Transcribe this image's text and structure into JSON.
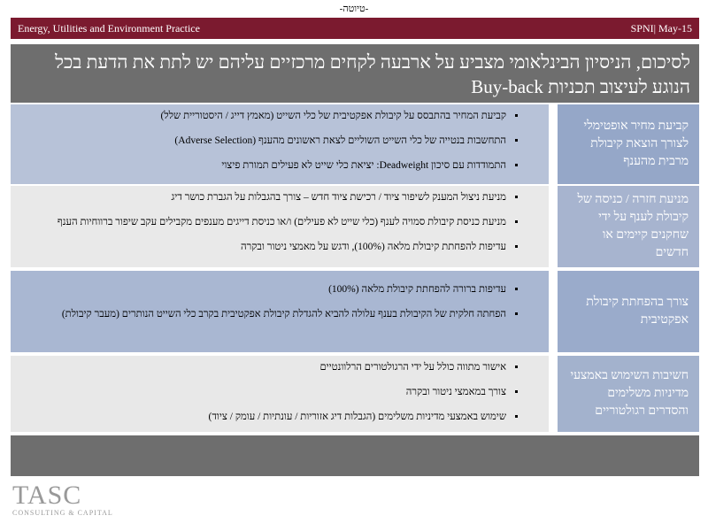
{
  "draft": "-טיוטה-",
  "header": {
    "practice": "Energy, Utilities and Environment Practice",
    "date": "SPNI| May-15"
  },
  "title": "לסיכום, הניסיון הבינלאומי מצביע על ארבעה לקחים מרכזיים עליהם יש לתת את הדעת בכל הנוגע לעיצוב תכניות Buy-back",
  "sections": [
    {
      "label": "קביעת מחיר אופטימלי לצורך הוצאת קיבולת מרבית מהענף",
      "bullets": [
        "קביעת המחיר בהתבסס על קיבולת אפקטיבית של כלי השייט (מאמץ דייג / היסטוריית שלל)",
        "התחשבות בנטייה של כלי השייט השוליים לצאת ראשונים מהענף (Adverse Selection)",
        "התמודדות עם סיכון Deadweight: יציאת כלי שייט לא פעילים תמורת פיצוי"
      ]
    },
    {
      "label": "מניעת חזרה / כניסה של קיבולת לענף על ידי שחקנים קיימים או חדשים",
      "bullets": [
        "מניעת ניצול המענק לשיפור ציוד / רכישת ציוד חדש – צורך בהגבלות על הגברת כושר דיג",
        "מניעת כניסת קיבולת סמויה לענף (כלי שייט לא פעילים) ו/או כניסת דייגים מענפים מקבילים עקב שיפור ברווחיות הענף",
        "עדיפות להפחתת קיבולת מלאה (100%), ודגש על מאמצי ניטור ובקרה"
      ]
    },
    {
      "label": "צורך בהפחתת קיבולת אפקטיבית",
      "bullets": [
        "עדיפות ברורה להפחתת קיבולת מלאה (100%)",
        "הפחתה חלקית של הקיבולת בענף עלולה להביא להגדלת קיבולת אפקטיבית בקרב כלי השייט הנותרים (מעבר קיבולת)"
      ]
    },
    {
      "label": "חשיבות השימוש באמצעי מדיניות משלימים והסדרים רגולטוריים",
      "bullets": [
        "אישור מתווה כולל על ידי הרגולטורים הרלוונטיים",
        "צורך במאמצי ניטור ובקרה",
        "שימוש באמצעי מדיניות משלימים (הגבלות דיג אזוריות / עונתיות / עומק / ציוד)"
      ]
    }
  ],
  "logo": {
    "name": "TASC",
    "tagline": "CONSULTING & CAPITAL"
  }
}
